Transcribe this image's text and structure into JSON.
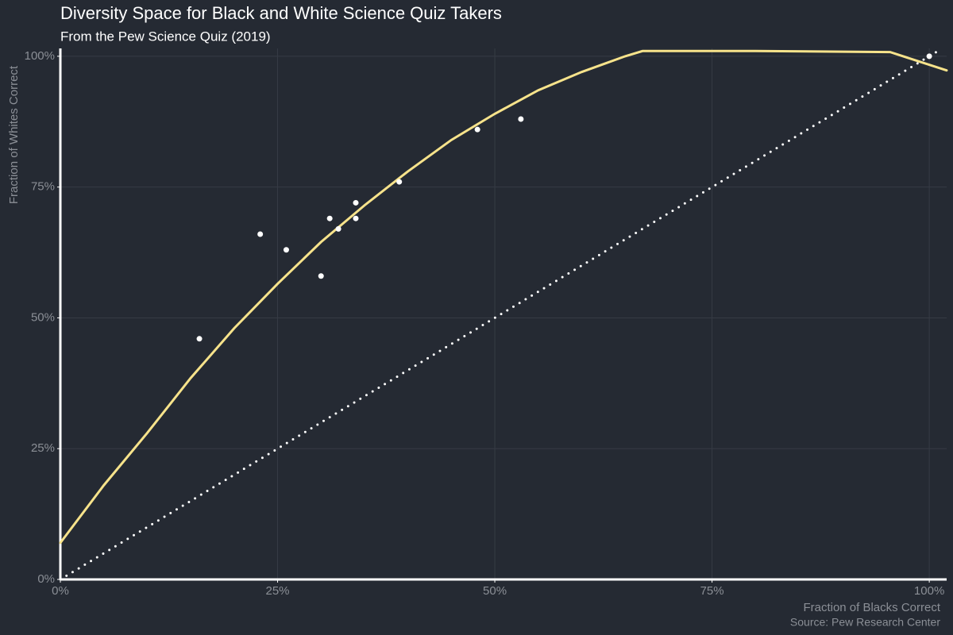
{
  "chart_data": {
    "type": "scatter",
    "title": "Diversity Space for Black and White Science Quiz Takers",
    "subtitle": "From the Pew Science Quiz (2019)",
    "xlabel": "Fraction of Blacks Correct",
    "ylabel": "Fraction of Whites Correct",
    "caption": "Source: Pew Research Center",
    "xlim": [
      0,
      102
    ],
    "ylim": [
      0,
      101.5
    ],
    "xticks": [
      {
        "value": 0,
        "label": "0%"
      },
      {
        "value": 25,
        "label": "25%"
      },
      {
        "value": 50,
        "label": "50%"
      },
      {
        "value": 75,
        "label": "75%"
      },
      {
        "value": 100,
        "label": "100%"
      }
    ],
    "yticks": [
      {
        "value": 0,
        "label": "0%"
      },
      {
        "value": 25,
        "label": "25%"
      },
      {
        "value": 50,
        "label": "50%"
      },
      {
        "value": 75,
        "label": "75%"
      },
      {
        "value": 100,
        "label": "100%"
      }
    ],
    "grid": true,
    "series": [
      {
        "type": "line",
        "style": "dotted",
        "color": "#ffffff",
        "x": [
          0,
          101
        ],
        "values": [
          0,
          101
        ]
      },
      {
        "type": "line",
        "style": "solid",
        "color": "#f7e38b",
        "x": [
          0,
          5,
          10,
          15,
          20,
          25,
          30,
          35,
          40,
          45,
          50,
          55,
          60,
          65,
          67,
          80,
          95.5,
          102
        ],
        "values": [
          7,
          18,
          28,
          38.5,
          48,
          56.5,
          64.5,
          71.5,
          78,
          84,
          89,
          93.5,
          97,
          100,
          101,
          101,
          100.8,
          97.3
        ]
      },
      {
        "type": "scatter",
        "color": "#ffffff",
        "x": [
          16,
          23,
          26,
          30,
          31,
          32,
          34,
          34,
          39,
          48,
          53,
          100
        ],
        "values": [
          46,
          66,
          63,
          58,
          69,
          67,
          72,
          69,
          76,
          86,
          88,
          100
        ]
      }
    ]
  }
}
